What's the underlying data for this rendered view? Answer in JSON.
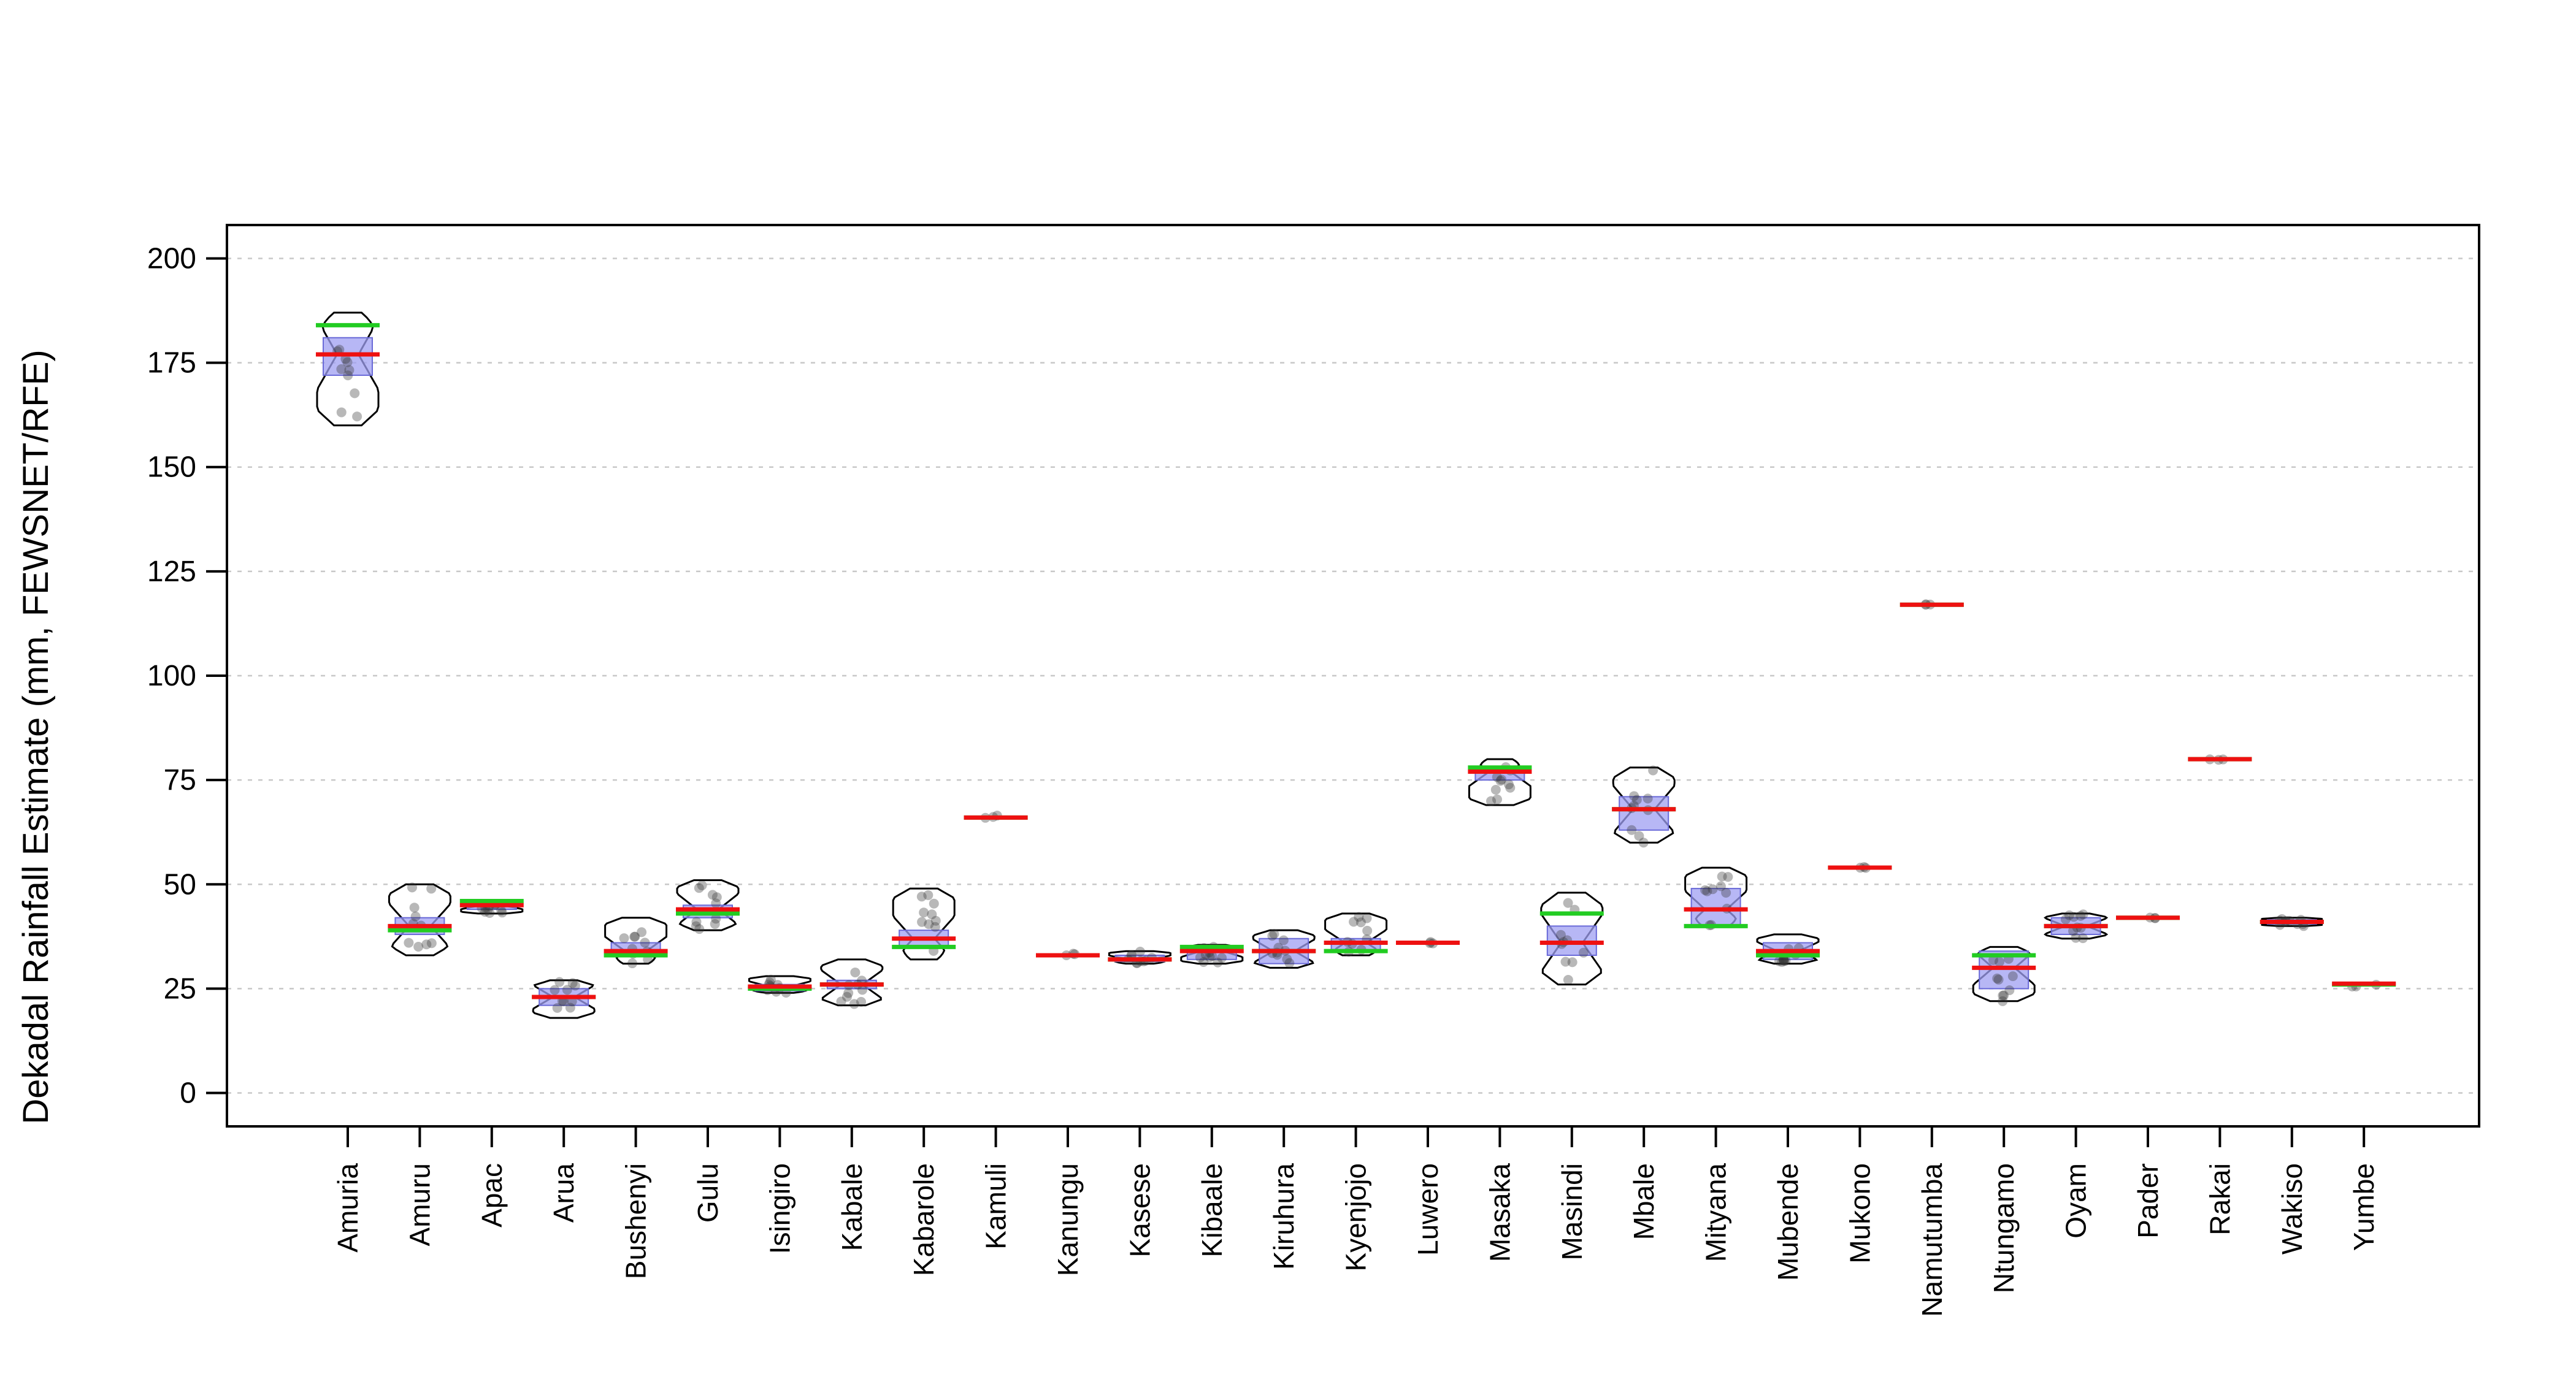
{
  "chart_data": {
    "type": "boxplot",
    "title": "",
    "xlabel": "",
    "ylabel": "Dekadal Rainfall Estimate (mm, FEWSNET/RFE)",
    "ylim": [
      -8,
      208
    ],
    "yticks": [
      0,
      25,
      50,
      75,
      100,
      125,
      150,
      175,
      200
    ],
    "grid": true,
    "legend": "none",
    "colors": {
      "box_fill": "#9f9ff2",
      "box_stroke": "#6a6ad8",
      "median": "#ee1111",
      "mean": "#22cc22",
      "violin": "#000000",
      "points": "#333333",
      "grid": "#c8c8c8"
    },
    "categories": [
      "Amuria",
      "Amuru",
      "Apac",
      "Arua",
      "Bushenyi",
      "Gulu",
      "Isingiro",
      "Kabale",
      "Kabarole",
      "Kamuli",
      "Kanungu",
      "Kasese",
      "Kibaale",
      "Kiruhura",
      "Kyenjojo",
      "Luwero",
      "Masaka",
      "Masindi",
      "Mbale",
      "Mityana",
      "Mubende",
      "Mukono",
      "Namutumba",
      "Ntungamo",
      "Oyam",
      "Pader",
      "Rakai",
      "Wakiso",
      "Yumbe"
    ],
    "series": [
      {
        "category": "Amuria",
        "min": 160,
        "q1": 172,
        "median": 177,
        "q3": 181,
        "max": 187,
        "mean": 184
      },
      {
        "category": "Amuru",
        "min": 33,
        "q1": 38,
        "median": 40,
        "q3": 42,
        "max": 50,
        "mean": 39
      },
      {
        "category": "Apac",
        "min": 43,
        "q1": 44,
        "median": 45,
        "q3": 45.5,
        "max": 46,
        "mean": 46
      },
      {
        "category": "Arua",
        "min": 18,
        "q1": 21,
        "median": 23,
        "q3": 25,
        "max": 27,
        "mean": 23
      },
      {
        "category": "Bushenyi",
        "min": 31,
        "q1": 33,
        "median": 34,
        "q3": 36,
        "max": 42,
        "mean": 33
      },
      {
        "category": "Gulu",
        "min": 39,
        "q1": 42,
        "median": 44,
        "q3": 45,
        "max": 51,
        "mean": 43
      },
      {
        "category": "Isingiro",
        "min": 24,
        "q1": 24.5,
        "median": 25.5,
        "q3": 26,
        "max": 28,
        "mean": 25
      },
      {
        "category": "Kabale",
        "min": 21,
        "q1": 25,
        "median": 26,
        "q3": 27,
        "max": 32,
        "mean": 26
      },
      {
        "category": "Kabarole",
        "min": 32,
        "q1": 35,
        "median": 37,
        "q3": 39,
        "max": 49,
        "mean": 35
      },
      {
        "category": "Kamuli",
        "min": 65.5,
        "q1": 65.8,
        "median": 66,
        "q3": 66.2,
        "max": 66.5,
        "mean": 66
      },
      {
        "category": "Kanungu",
        "min": 32.5,
        "q1": 32.8,
        "median": 33,
        "q3": 33.2,
        "max": 33.5,
        "mean": 33
      },
      {
        "category": "Kasese",
        "min": 31,
        "q1": 31.5,
        "median": 32,
        "q3": 33,
        "max": 34,
        "mean": 32
      },
      {
        "category": "Kibaale",
        "min": 31,
        "q1": 32,
        "median": 34,
        "q3": 35,
        "max": 35.5,
        "mean": 35
      },
      {
        "category": "Kiruhura",
        "min": 30,
        "q1": 31,
        "median": 34,
        "q3": 37,
        "max": 39,
        "mean": 34
      },
      {
        "category": "Kyenjojo",
        "min": 33,
        "q1": 34,
        "median": 36,
        "q3": 37,
        "max": 43,
        "mean": 34
      },
      {
        "category": "Luwero",
        "min": 35.8,
        "q1": 35.9,
        "median": 36,
        "q3": 36.1,
        "max": 36.2,
        "mean": 36
      },
      {
        "category": "Masaka",
        "min": 69,
        "q1": 75,
        "median": 77,
        "q3": 78,
        "max": 80,
        "mean": 78
      },
      {
        "category": "Masindi",
        "min": 26,
        "q1": 33,
        "median": 36,
        "q3": 40,
        "max": 48,
        "mean": 43
      },
      {
        "category": "Mbale",
        "min": 60,
        "q1": 63,
        "median": 68,
        "q3": 71,
        "max": 78,
        "mean": 68
      },
      {
        "category": "Mityana",
        "min": 40,
        "q1": 40,
        "median": 44,
        "q3": 49,
        "max": 54,
        "mean": 40
      },
      {
        "category": "Mubende",
        "min": 31,
        "q1": 32,
        "median": 34,
        "q3": 36,
        "max": 38,
        "mean": 33
      },
      {
        "category": "Mukono",
        "min": 53.8,
        "q1": 53.9,
        "median": 54,
        "q3": 54.1,
        "max": 54.2,
        "mean": 54
      },
      {
        "category": "Namutumba",
        "min": 116.8,
        "q1": 116.9,
        "median": 117,
        "q3": 117.1,
        "max": 117.2,
        "mean": 117
      },
      {
        "category": "Ntungamo",
        "min": 22,
        "q1": 25,
        "median": 30,
        "q3": 34,
        "max": 35,
        "mean": 33
      },
      {
        "category": "Oyam",
        "min": 37,
        "q1": 38,
        "median": 40,
        "q3": 42,
        "max": 43,
        "mean": 40
      },
      {
        "category": "Pader",
        "min": 41.8,
        "q1": 41.9,
        "median": 42,
        "q3": 42.1,
        "max": 42.2,
        "mean": 42
      },
      {
        "category": "Rakai",
        "min": 79.8,
        "q1": 79.9,
        "median": 80,
        "q3": 80.1,
        "max": 80.2,
        "mean": 80
      },
      {
        "category": "Wakiso",
        "min": 40,
        "q1": 40.5,
        "median": 41,
        "q3": 41.5,
        "max": 42,
        "mean": 41
      },
      {
        "category": "Yumbe",
        "min": 25.5,
        "q1": 26,
        "median": 26.2,
        "q3": 26.5,
        "max": 27,
        "mean": 26
      }
    ]
  }
}
